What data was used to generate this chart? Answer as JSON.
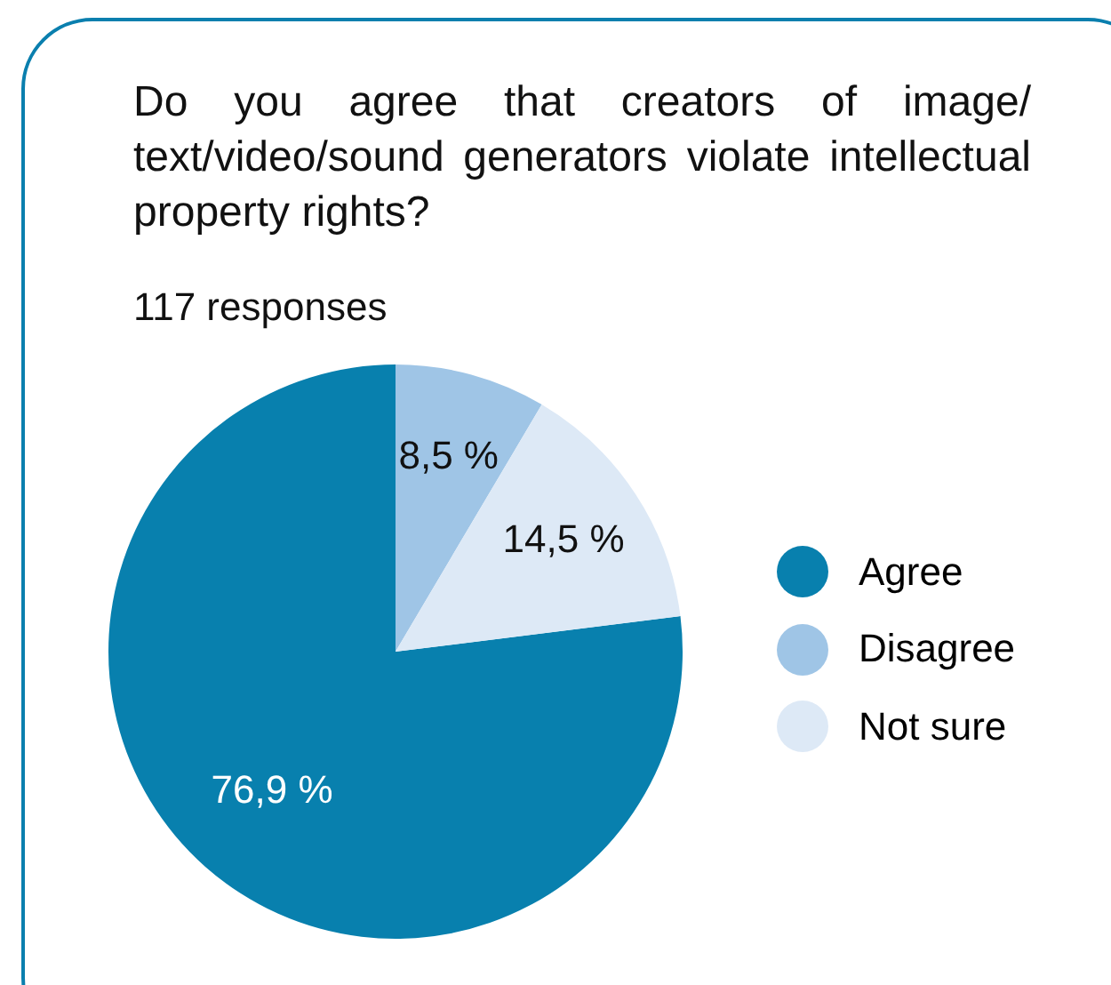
{
  "chart_data": {
    "type": "pie",
    "title": "Do you agree that creators of image/ text/video/sound generators violate intellectual property rights?",
    "subtitle": "117 responses",
    "categories": [
      "Agree",
      "Disagree",
      "Not sure"
    ],
    "values": [
      76.9,
      8.5,
      14.5
    ],
    "value_labels": [
      "76,9 %",
      "8,5 %",
      "14,5 %"
    ],
    "colors": [
      "#0880ae",
      "#9fc5e6",
      "#dde9f6"
    ],
    "legend": "right"
  }
}
